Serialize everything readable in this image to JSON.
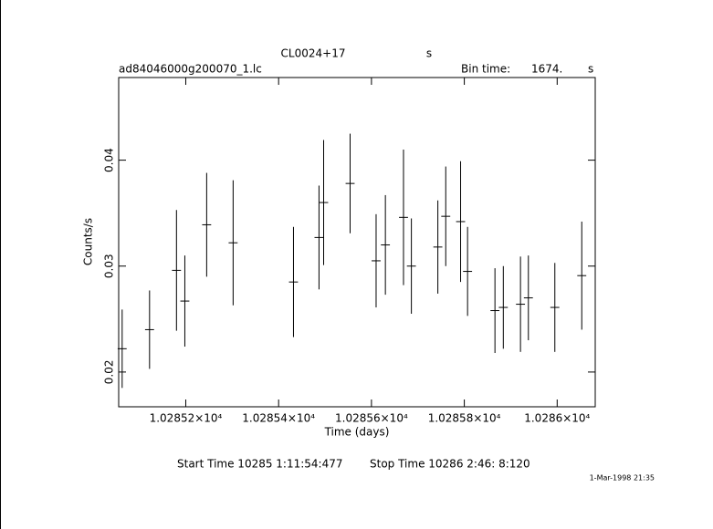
{
  "chart_data": {
    "type": "errorbar",
    "title": "CL0024+17",
    "title_unit": "s",
    "file_name": "ad84046000g200070_1.lc",
    "bin_time_label": "Bin time:",
    "bin_time": {
      "value": 1674,
      "label": "1674."
    },
    "bin_time_unit": "s",
    "xlabel": "Time (days)",
    "ylabel": "Counts/s",
    "start_time": "Start Time 10285  1:11:54:477",
    "stop_time": "Stop Time 10286  2:46: 8:120",
    "timestamp": "1-Mar-1998 21:35",
    "color": "#000000",
    "xlim": [
      10285.0555,
      10286.082
    ],
    "ylim": [
      0.01672,
      0.0478
    ],
    "xticks": [
      {
        "value": 10285.2,
        "label": "1.02852×10⁴"
      },
      {
        "value": 10285.4,
        "label": "1.02854×10⁴"
      },
      {
        "value": 10285.6,
        "label": "1.02856×10⁴"
      },
      {
        "value": 10285.8,
        "label": "1.02858×10⁴"
      },
      {
        "value": 10286.0,
        "label": "1.0286×10⁴"
      }
    ],
    "yticks": [
      0.02,
      0.03,
      0.04
    ],
    "x": [
      10285.063,
      10285.122,
      10285.18,
      10285.198,
      10285.245,
      10285.302,
      10285.432,
      10285.487,
      10285.497,
      10285.554,
      10285.61,
      10285.63,
      10285.669,
      10285.686,
      10285.743,
      10285.76,
      10285.792,
      10285.807,
      10285.866,
      10285.884,
      10285.921,
      10285.938,
      10285.995,
      10286.053
    ],
    "values": [
      0.0222,
      0.024,
      0.0296,
      0.0267,
      0.0339,
      0.0322,
      0.0285,
      0.0327,
      0.036,
      0.0378,
      0.0305,
      0.032,
      0.0346,
      0.03,
      0.0318,
      0.0347,
      0.0342,
      0.0295,
      0.0258,
      0.0261,
      0.0264,
      0.027,
      0.0261,
      0.0291
    ],
    "errors": [
      0.0037,
      0.0037,
      0.0057,
      0.0043,
      0.0049,
      0.0059,
      0.0052,
      0.0049,
      0.0059,
      0.0047,
      0.0044,
      0.0047,
      0.0064,
      0.0045,
      0.0044,
      0.0047,
      0.0057,
      0.0042,
      0.004,
      0.0039,
      0.0045,
      0.004,
      0.0042,
      0.0051
    ]
  }
}
